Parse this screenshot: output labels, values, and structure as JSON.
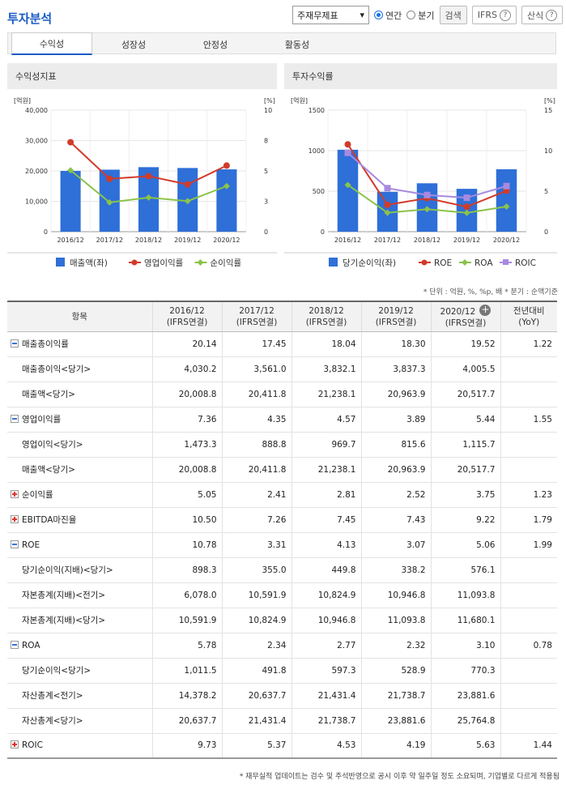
{
  "header": {
    "title": "투자분석",
    "select_value": "주재무제표",
    "radio_annual": "연간",
    "radio_quarter": "분기",
    "search_button": "검색",
    "ifrs_button": "IFRS",
    "formula_button": "산식"
  },
  "tabs": [
    "수익성",
    "성장성",
    "안정성",
    "활동성"
  ],
  "left_chart_title": "수익성지표",
  "right_chart_title": "투자수익률",
  "chart_data": [
    {
      "type": "bar",
      "title": "수익성지표",
      "categories": [
        "2016/12",
        "2017/12",
        "2018/12",
        "2019/12",
        "2020/12"
      ],
      "y_left_label": "[억원]",
      "y_right_label": "[%]",
      "y_left_ticks": [
        "0",
        "10,000",
        "20,000",
        "30,000",
        "40,000"
      ],
      "y_right_ticks": [
        "0",
        "3",
        "5",
        "8",
        "10"
      ],
      "ylim_left": [
        0,
        40000
      ],
      "ylim_right": [
        0,
        10
      ],
      "series": [
        {
          "name": "매출액(좌)",
          "type": "bar",
          "axis": "left",
          "color": "#2e6fd8",
          "values": [
            20008.8,
            20411.8,
            21238.1,
            20963.9,
            20517.7
          ]
        },
        {
          "name": "영업이익률",
          "type": "line",
          "axis": "right",
          "color": "#d13b2a",
          "values": [
            7.36,
            4.35,
            4.57,
            3.89,
            5.44
          ]
        },
        {
          "name": "순이익률",
          "type": "line",
          "axis": "right",
          "color": "#8bc34a",
          "values": [
            5.05,
            2.41,
            2.81,
            2.52,
            3.75
          ]
        }
      ]
    },
    {
      "type": "bar",
      "title": "투자수익률",
      "categories": [
        "2016/12",
        "2017/12",
        "2018/12",
        "2019/12",
        "2020/12"
      ],
      "y_left_label": "[억원]",
      "y_right_label": "[%]",
      "y_left_ticks": [
        "0",
        "500",
        "1000",
        "1500"
      ],
      "y_right_ticks": [
        "0",
        "5",
        "10",
        "15"
      ],
      "ylim_left": [
        0,
        1500
      ],
      "ylim_right": [
        0,
        15
      ],
      "series": [
        {
          "name": "당기순이익(좌)",
          "type": "bar",
          "axis": "left",
          "color": "#2e6fd8",
          "values": [
            1011.5,
            491.8,
            597.3,
            528.9,
            770.3
          ]
        },
        {
          "name": "ROE",
          "type": "line",
          "axis": "right",
          "color": "#d13b2a",
          "values": [
            10.78,
            3.31,
            4.13,
            3.07,
            5.06
          ]
        },
        {
          "name": "ROA",
          "type": "line",
          "axis": "right",
          "color": "#8bc34a",
          "values": [
            5.78,
            2.34,
            2.77,
            2.32,
            3.1
          ]
        },
        {
          "name": "ROIC",
          "type": "line",
          "axis": "right",
          "color": "#a78ae0",
          "values": [
            9.73,
            5.37,
            4.53,
            4.19,
            5.63
          ]
        }
      ]
    }
  ],
  "unit_note": "* 단위 : 억원, %, %p, 배   * 분기 : 순액기준",
  "table": {
    "headers": [
      {
        "l1": "항목",
        "l2": ""
      },
      {
        "l1": "2016/12",
        "l2": "(IFRS연결)"
      },
      {
        "l1": "2017/12",
        "l2": "(IFRS연결)"
      },
      {
        "l1": "2018/12",
        "l2": "(IFRS연결)"
      },
      {
        "l1": "2019/12",
        "l2": "(IFRS연결)"
      },
      {
        "l1": "2020/12",
        "l2": "(IFRS연결)"
      },
      {
        "l1": "전년대비",
        "l2": "(YoY)"
      }
    ],
    "rows": [
      {
        "label": "매출총이익률",
        "toggle": "minus",
        "level": 0,
        "values": [
          "20.14",
          "17.45",
          "18.04",
          "18.30",
          "19.52",
          "1.22"
        ]
      },
      {
        "label": "매출총이익<당기>",
        "toggle": "",
        "level": 1,
        "values": [
          "4,030.2",
          "3,561.0",
          "3,832.1",
          "3,837.3",
          "4,005.5",
          ""
        ]
      },
      {
        "label": "매출액<당기>",
        "toggle": "",
        "level": 1,
        "values": [
          "20,008.8",
          "20,411.8",
          "21,238.1",
          "20,963.9",
          "20,517.7",
          ""
        ]
      },
      {
        "label": "영업이익률",
        "toggle": "minus",
        "level": 0,
        "values": [
          "7.36",
          "4.35",
          "4.57",
          "3.89",
          "5.44",
          "1.55"
        ]
      },
      {
        "label": "영업이익<당기>",
        "toggle": "",
        "level": 1,
        "values": [
          "1,473.3",
          "888.8",
          "969.7",
          "815.6",
          "1,115.7",
          ""
        ]
      },
      {
        "label": "매출액<당기>",
        "toggle": "",
        "level": 1,
        "values": [
          "20,008.8",
          "20,411.8",
          "21,238.1",
          "20,963.9",
          "20,517.7",
          ""
        ]
      },
      {
        "label": "순이익률",
        "toggle": "plus",
        "level": 0,
        "values": [
          "5.05",
          "2.41",
          "2.81",
          "2.52",
          "3.75",
          "1.23"
        ]
      },
      {
        "label": "EBITDA마진율",
        "toggle": "plus",
        "level": 0,
        "values": [
          "10.50",
          "7.26",
          "7.45",
          "7.43",
          "9.22",
          "1.79"
        ]
      },
      {
        "label": "ROE",
        "toggle": "minus",
        "level": 0,
        "values": [
          "10.78",
          "3.31",
          "4.13",
          "3.07",
          "5.06",
          "1.99"
        ]
      },
      {
        "label": "당기순이익(지배)<당기>",
        "toggle": "",
        "level": 1,
        "values": [
          "898.3",
          "355.0",
          "449.8",
          "338.2",
          "576.1",
          ""
        ]
      },
      {
        "label": "자본총계(지배)<전기>",
        "toggle": "",
        "level": 1,
        "values": [
          "6,078.0",
          "10,591.9",
          "10,824.9",
          "10,946.8",
          "11,093.8",
          ""
        ]
      },
      {
        "label": "자본총계(지배)<당기>",
        "toggle": "",
        "level": 1,
        "values": [
          "10,591.9",
          "10,824.9",
          "10,946.8",
          "11,093.8",
          "11,680.1",
          ""
        ]
      },
      {
        "label": "ROA",
        "toggle": "minus",
        "level": 0,
        "values": [
          "5.78",
          "2.34",
          "2.77",
          "2.32",
          "3.10",
          "0.78"
        ]
      },
      {
        "label": "당기순이익<당기>",
        "toggle": "",
        "level": 1,
        "values": [
          "1,011.5",
          "491.8",
          "597.3",
          "528.9",
          "770.3",
          ""
        ]
      },
      {
        "label": "자산총계<전기>",
        "toggle": "",
        "level": 1,
        "values": [
          "14,378.2",
          "20,637.7",
          "21,431.4",
          "21,738.7",
          "23,881.6",
          ""
        ]
      },
      {
        "label": "자산총계<당기>",
        "toggle": "",
        "level": 1,
        "values": [
          "20,637.7",
          "21,431.4",
          "21,738.7",
          "23,881.6",
          "25,764.8",
          ""
        ]
      },
      {
        "label": "ROIC",
        "toggle": "plus",
        "level": 0,
        "values": [
          "9.73",
          "5.37",
          "4.53",
          "4.19",
          "5.63",
          "1.44"
        ]
      }
    ]
  },
  "footnote": "* 재무실적 업데이트는 검수 및 주석반영으로 공시 이후 약 일주일 정도 소요되며, 기업별로 다르게 적용됨"
}
